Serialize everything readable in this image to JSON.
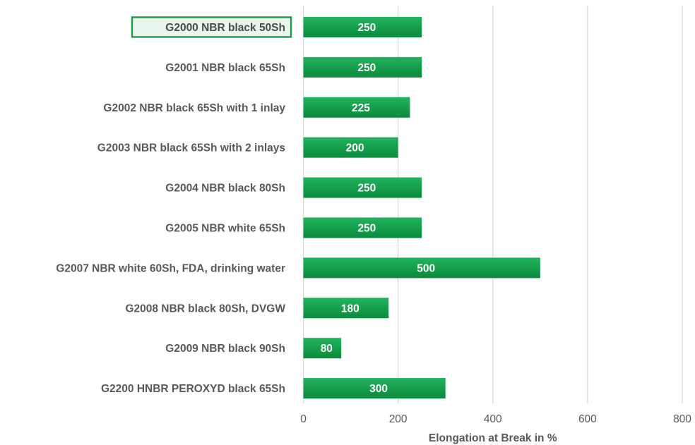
{
  "chart_data": {
    "type": "bar",
    "orientation": "horizontal",
    "categories": [
      "G2000 NBR black 50Sh",
      "G2001 NBR black 65Sh",
      "G2002 NBR black 65Sh with 1 inlay",
      "G2003 NBR black 65Sh with 2 inlays",
      "G2004 NBR black 80Sh",
      "G2005 NBR white 65Sh",
      "G2007 NBR white 60Sh, FDA, drinking water",
      "G2008 NBR black 80Sh, DVGW",
      "G2009 NBR black 90Sh",
      "G2200 HNBR PEROXYD black 65Sh"
    ],
    "values": [
      250,
      250,
      225,
      200,
      250,
      250,
      500,
      180,
      80,
      300
    ],
    "selected_category": "G2000 NBR black 50Sh",
    "xlabel": "Elongation at Break in %",
    "xlim": [
      0,
      800
    ],
    "xticks": [
      0,
      200,
      400,
      600,
      800
    ],
    "xtick_labels": [
      "0",
      "200",
      "400",
      "600",
      "800"
    ],
    "grid": true,
    "data_labels": true,
    "colors": {
      "bar_top": "#22b35e",
      "bar_bottom": "#0a8a3c",
      "selection_border": "#1c9a4a",
      "selection_fill": "#e9f6ec",
      "label_text": "#595959",
      "gridline": "#d9d9d9"
    }
  }
}
